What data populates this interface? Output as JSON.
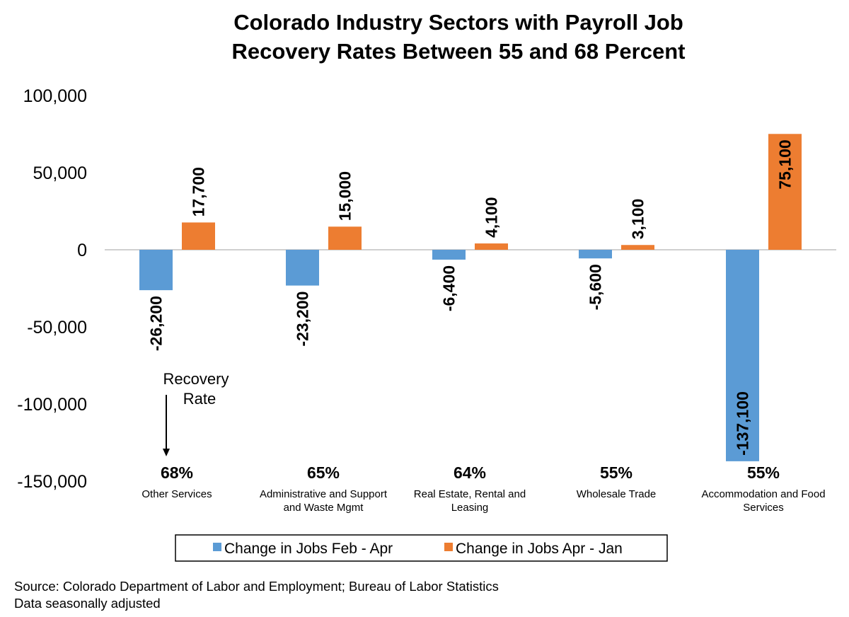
{
  "chart_data": {
    "type": "bar",
    "title": [
      "Colorado Industry Sectors with Payroll Job",
      "Recovery Rates Between 55 and 68 Percent"
    ],
    "categories": [
      "Other Services",
      "Administrative and Support and Waste Mgmt",
      "Real Estate, Rental and Leasing",
      "Wholesale Trade",
      "Accommodation and Food Services"
    ],
    "category_lines": [
      [
        "Other Services"
      ],
      [
        "Administrative and Support",
        "and Waste Mgmt"
      ],
      [
        "Real Estate, Rental and",
        "Leasing"
      ],
      [
        "Wholesale Trade"
      ],
      [
        "Accommodation and Food",
        "Services"
      ]
    ],
    "recovery_rates": [
      "68%",
      "65%",
      "64%",
      "55%",
      "55%"
    ],
    "series": [
      {
        "name": "Change in Jobs Feb - Apr",
        "color": "#5B9BD5",
        "values": [
          -26200,
          -23200,
          -6400,
          -5600,
          -137100
        ],
        "labels": [
          "-26,200",
          "-23,200",
          "-6,400",
          "-5,600",
          "-137,100"
        ]
      },
      {
        "name": "Change in Jobs Apr - Jan",
        "color": "#ED7D31",
        "values": [
          17700,
          15000,
          4100,
          3100,
          75100
        ],
        "labels": [
          "17,700",
          "15,000",
          "4,100",
          "3,100",
          "75,100"
        ]
      }
    ],
    "ylim": [
      -150000,
      100000
    ],
    "yticks": [
      100000,
      50000,
      0,
      -50000,
      -100000,
      -150000
    ],
    "ytick_labels": [
      "100,000",
      "50,000",
      "0",
      "-50,000",
      "-100,000",
      "-150,000"
    ],
    "annotation": [
      "Recovery",
      "Rate"
    ],
    "legend_position": "bottom",
    "grid": false
  },
  "footer": {
    "source": "Source: Colorado Department of Labor and Employment; Bureau of Labor Statistics",
    "note": "Data seasonally adjusted"
  }
}
